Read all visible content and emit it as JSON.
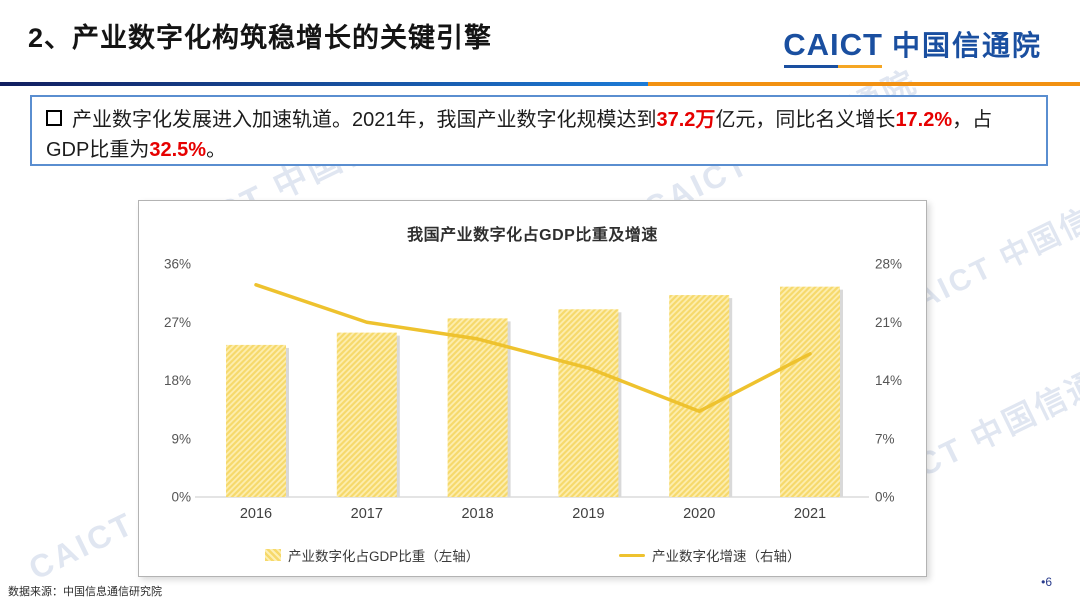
{
  "header": {
    "title": "2、产业数字化构筑稳增长的关键引擎",
    "logo_en": "CAICT",
    "logo_cn": "中国信通院"
  },
  "callout": {
    "segments": [
      {
        "text": "产业数字化发展进入加速轨道。2021年，我国产业数字化规模达到",
        "em": false
      },
      {
        "text": "37.2万",
        "em": true
      },
      {
        "text": "亿元，同比名义增长",
        "em": false
      },
      {
        "text": "17.2%",
        "em": true
      },
      {
        "text": "，占GDP比重为",
        "em": false
      },
      {
        "text": "32.5%",
        "em": true
      },
      {
        "text": "。",
        "em": false
      }
    ]
  },
  "chart_data": {
    "type": "bar",
    "title": "我国产业数字化占GDP比重及增速",
    "categories": [
      "2016",
      "2017",
      "2018",
      "2019",
      "2020",
      "2021"
    ],
    "series": [
      {
        "name": "产业数字化占GDP比重（左轴）",
        "type": "bar",
        "axis": "left",
        "values": [
          23.5,
          25.4,
          27.6,
          29.0,
          31.2,
          32.5
        ]
      },
      {
        "name": "产业数字化增速（右轴）",
        "type": "line",
        "axis": "right",
        "values": [
          25.5,
          21.0,
          19.0,
          15.5,
          10.3,
          17.2
        ]
      }
    ],
    "left_axis": {
      "ticks": [
        "36%",
        "27%",
        "18%",
        "9%",
        "0%"
      ],
      "min": 0,
      "max": 36
    },
    "right_axis": {
      "ticks": [
        "28%",
        "21%",
        "14%",
        "7%",
        "0%"
      ],
      "min": 0,
      "max": 28
    },
    "grid": "baseline-only",
    "legend_position": "bottom",
    "colors": {
      "bar": "#f6d96b",
      "bar_hatch": "#fdeeb0",
      "line": "#eec22e"
    }
  },
  "footer": {
    "source": "数据来源：中国信息通信研究院",
    "page": "•6"
  },
  "watermark": {
    "text": "CAICT 中国信通院"
  }
}
